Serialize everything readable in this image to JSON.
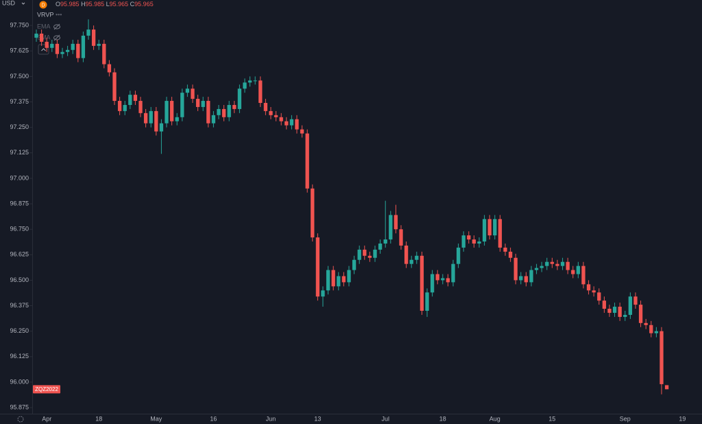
{
  "ui": {
    "currency": "USD",
    "interval_icon": "D",
    "ohlc_labels": [
      "O",
      "H",
      "L",
      "C"
    ],
    "indicators": [
      "VRVP",
      "EMA",
      "SMA"
    ],
    "indicator_menu": "•••"
  },
  "chart_data": {
    "type": "candlestick",
    "up_color": "#26a69a",
    "down_color": "#ef5350",
    "grid": false,
    "last_label": "ZQZ2022",
    "ylim": [
      95.845,
      97.875
    ],
    "yticks": [
      {
        "value": 95.875,
        "label": "95.875"
      },
      {
        "value": 96,
        "label": "96.000"
      },
      {
        "value": 96.125,
        "label": "96.125"
      },
      {
        "value": 96.25,
        "label": "96.250"
      },
      {
        "value": 96.375,
        "label": "96.375"
      },
      {
        "value": 96.5,
        "label": "96.500"
      },
      {
        "value": 96.625,
        "label": "96.625"
      },
      {
        "value": 96.75,
        "label": "96.750"
      },
      {
        "value": 96.875,
        "label": "96.875"
      },
      {
        "value": 97,
        "label": "97.000"
      },
      {
        "value": 97.125,
        "label": "97.125"
      },
      {
        "value": 97.25,
        "label": "97.250"
      },
      {
        "value": 97.375,
        "label": "97.375"
      },
      {
        "value": 97.5,
        "label": "97.500"
      },
      {
        "value": 97.625,
        "label": "97.625"
      },
      {
        "value": 97.75,
        "label": "97.750"
      }
    ],
    "categories": [
      null,
      null,
      "Apr",
      null,
      null,
      null,
      null,
      null,
      null,
      null,
      null,
      null,
      "18",
      null,
      null,
      null,
      null,
      null,
      null,
      null,
      null,
      null,
      null,
      "May",
      null,
      null,
      null,
      null,
      null,
      null,
      null,
      null,
      null,
      null,
      "16",
      null,
      null,
      null,
      null,
      null,
      null,
      null,
      null,
      null,
      null,
      "Jun",
      null,
      null,
      null,
      null,
      null,
      null,
      null,
      null,
      "13",
      null,
      null,
      null,
      null,
      null,
      null,
      null,
      null,
      null,
      null,
      null,
      null,
      "Jul",
      null,
      null,
      null,
      null,
      null,
      null,
      null,
      null,
      null,
      null,
      "18",
      null,
      null,
      null,
      null,
      null,
      null,
      null,
      null,
      null,
      "Aug",
      null,
      null,
      null,
      null,
      null,
      null,
      null,
      null,
      null,
      null,
      "15",
      null,
      null,
      null,
      null,
      null,
      null,
      null,
      null,
      null,
      null,
      null,
      null,
      null,
      "Sep",
      null,
      null,
      null,
      null,
      null,
      null,
      null,
      null,
      null,
      null,
      "19",
      null
    ],
    "open": [
      97.69,
      97.71,
      97.67,
      97.64,
      97.66,
      97.61,
      97.62,
      97.63,
      97.66,
      97.59,
      97.7,
      97.73,
      97.65,
      97.66,
      97.56,
      97.52,
      97.38,
      97.33,
      97.36,
      97.41,
      97.38,
      97.32,
      97.27,
      97.33,
      97.23,
      97.27,
      97.38,
      97.28,
      97.3,
      97.42,
      97.44,
      97.39,
      97.35,
      97.38,
      97.27,
      97.31,
      97.34,
      97.3,
      97.36,
      97.34,
      97.44,
      97.47,
      97.48,
      97.48,
      97.37,
      97.33,
      97.31,
      97.3,
      97.28,
      97.26,
      97.29,
      97.24,
      97.22,
      96.95,
      96.71,
      96.42,
      96.45,
      96.55,
      96.47,
      96.52,
      96.49,
      96.55,
      96.6,
      96.65,
      96.62,
      96.61,
      96.65,
      96.68,
      96.7,
      96.82,
      96.75,
      96.67,
      96.58,
      96.6,
      96.62,
      96.35,
      96.44,
      96.53,
      96.5,
      96.51,
      96.49,
      96.58,
      96.66,
      96.72,
      96.7,
      96.68,
      96.69,
      96.8,
      96.72,
      96.8,
      96.66,
      96.64,
      96.61,
      96.5,
      96.52,
      96.49,
      96.55,
      96.56,
      96.57,
      96.59,
      96.58,
      96.57,
      96.59,
      96.55,
      96.53,
      96.57,
      96.48,
      96.45,
      96.44,
      96.4,
      96.36,
      96.34,
      96.37,
      96.32,
      96.33,
      96.42,
      96.38,
      96.29,
      96.28,
      96.24,
      96.25,
      95.985,
      null,
      null,
      null,
      null
    ],
    "high": [
      97.73,
      97.73,
      97.69,
      97.68,
      97.68,
      97.64,
      97.65,
      97.68,
      97.68,
      97.72,
      97.78,
      97.75,
      97.68,
      97.68,
      97.58,
      97.54,
      97.4,
      97.38,
      97.43,
      97.43,
      97.4,
      97.34,
      97.35,
      97.35,
      97.29,
      97.4,
      97.4,
      97.32,
      97.44,
      97.46,
      97.46,
      97.41,
      97.4,
      97.4,
      97.33,
      97.36,
      97.36,
      97.38,
      97.38,
      97.46,
      97.49,
      97.5,
      97.5,
      97.5,
      97.39,
      97.35,
      97.33,
      97.32,
      97.3,
      97.31,
      97.31,
      97.26,
      97.24,
      96.97,
      96.73,
      96.47,
      96.57,
      96.57,
      96.54,
      96.54,
      96.57,
      96.62,
      96.67,
      96.67,
      96.64,
      96.67,
      96.7,
      96.89,
      96.84,
      96.87,
      96.77,
      96.69,
      96.62,
      96.64,
      96.64,
      96.46,
      96.55,
      96.55,
      96.53,
      96.53,
      96.6,
      96.68,
      96.74,
      96.74,
      96.72,
      96.71,
      96.82,
      96.82,
      96.82,
      96.82,
      96.68,
      96.66,
      96.63,
      96.54,
      96.54,
      96.57,
      96.58,
      96.59,
      96.61,
      96.61,
      96.6,
      96.61,
      96.61,
      96.57,
      96.59,
      96.59,
      96.5,
      96.47,
      96.46,
      96.42,
      96.38,
      96.39,
      96.39,
      96.35,
      96.44,
      96.44,
      96.4,
      96.31,
      96.3,
      96.27,
      96.27,
      95.985,
      null,
      null,
      null,
      null
    ],
    "low": [
      97.67,
      97.65,
      97.62,
      97.62,
      97.59,
      97.59,
      97.6,
      97.61,
      97.57,
      97.57,
      97.68,
      97.63,
      97.63,
      97.54,
      97.5,
      97.36,
      97.31,
      97.31,
      97.34,
      97.36,
      97.3,
      97.25,
      97.25,
      97.21,
      97.12,
      97.25,
      97.26,
      97.26,
      97.28,
      97.4,
      97.37,
      97.33,
      97.33,
      97.25,
      97.25,
      97.29,
      97.28,
      97.28,
      97.32,
      97.32,
      97.42,
      97.45,
      97.46,
      97.35,
      97.31,
      97.29,
      97.28,
      97.26,
      97.24,
      97.24,
      97.22,
      97.2,
      96.93,
      96.69,
      96.4,
      96.37,
      96.43,
      96.45,
      96.45,
      96.47,
      96.47,
      96.53,
      96.58,
      96.6,
      96.59,
      96.59,
      96.63,
      96.66,
      96.68,
      96.73,
      96.65,
      96.56,
      96.56,
      96.58,
      96.33,
      96.32,
      96.42,
      96.48,
      96.48,
      96.47,
      96.47,
      96.56,
      96.64,
      96.68,
      96.66,
      96.66,
      96.67,
      96.7,
      96.7,
      96.64,
      96.62,
      96.59,
      96.48,
      96.48,
      96.47,
      96.47,
      96.53,
      96.54,
      96.55,
      96.56,
      96.55,
      96.55,
      96.53,
      96.51,
      96.51,
      96.46,
      96.43,
      96.42,
      96.38,
      96.34,
      96.32,
      96.32,
      96.3,
      96.3,
      96.31,
      96.36,
      96.27,
      96.26,
      96.22,
      96.22,
      95.94,
      95.965,
      null,
      null,
      null,
      null
    ],
    "close": [
      97.71,
      97.67,
      97.64,
      97.66,
      97.61,
      97.62,
      97.63,
      97.66,
      97.59,
      97.7,
      97.73,
      97.65,
      97.66,
      97.56,
      97.52,
      97.38,
      97.33,
      97.36,
      97.41,
      97.38,
      97.32,
      97.27,
      97.33,
      97.23,
      97.27,
      97.38,
      97.28,
      97.3,
      97.42,
      97.44,
      97.39,
      97.35,
      97.38,
      97.27,
      97.31,
      97.34,
      97.3,
      97.36,
      97.34,
      97.44,
      97.47,
      97.48,
      97.48,
      97.37,
      97.33,
      97.31,
      97.3,
      97.28,
      97.26,
      97.29,
      97.24,
      97.22,
      96.95,
      96.71,
      96.42,
      96.45,
      96.55,
      96.47,
      96.52,
      96.49,
      96.55,
      96.6,
      96.65,
      96.62,
      96.61,
      96.65,
      96.68,
      96.7,
      96.82,
      96.75,
      96.67,
      96.58,
      96.6,
      96.62,
      96.35,
      96.44,
      96.53,
      96.5,
      96.51,
      96.49,
      96.58,
      96.66,
      96.72,
      96.7,
      96.68,
      96.69,
      96.8,
      96.72,
      96.8,
      96.66,
      96.64,
      96.61,
      96.5,
      96.52,
      96.49,
      96.55,
      96.56,
      96.57,
      96.59,
      96.58,
      96.57,
      96.59,
      96.55,
      96.53,
      96.57,
      96.48,
      96.45,
      96.44,
      96.4,
      96.36,
      96.34,
      96.37,
      96.32,
      96.33,
      96.42,
      96.38,
      96.29,
      96.28,
      96.24,
      96.25,
      95.99,
      95.965,
      null,
      null,
      null,
      null
    ]
  }
}
